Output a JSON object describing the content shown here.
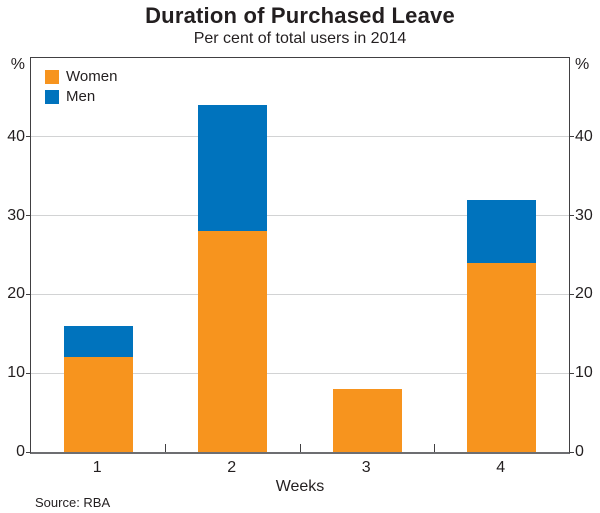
{
  "header": {
    "title": "Duration of Purchased Leave",
    "subtitle": "Per cent of total users in 2014"
  },
  "chart_data": {
    "type": "bar",
    "stacked": true,
    "categories": [
      "1",
      "2",
      "3",
      "4"
    ],
    "series": [
      {
        "name": "Women",
        "color": "#F7941E",
        "values": [
          12,
          28,
          8,
          24
        ]
      },
      {
        "name": "Men",
        "color": "#0073BD",
        "values": [
          4,
          16,
          0,
          8
        ]
      }
    ],
    "totals": [
      16,
      44,
      8,
      32
    ],
    "title": "Duration of Purchased Leave",
    "subtitle": "Per cent of total users in 2014",
    "xlabel": "Weeks",
    "ylabel_left": "%",
    "ylabel_right": "%",
    "yticks": [
      0,
      10,
      20,
      30,
      40
    ],
    "ylim": [
      0,
      50
    ],
    "grid": true,
    "legend_position": "top-left"
  },
  "footer": {
    "source": "Source: RBA"
  }
}
